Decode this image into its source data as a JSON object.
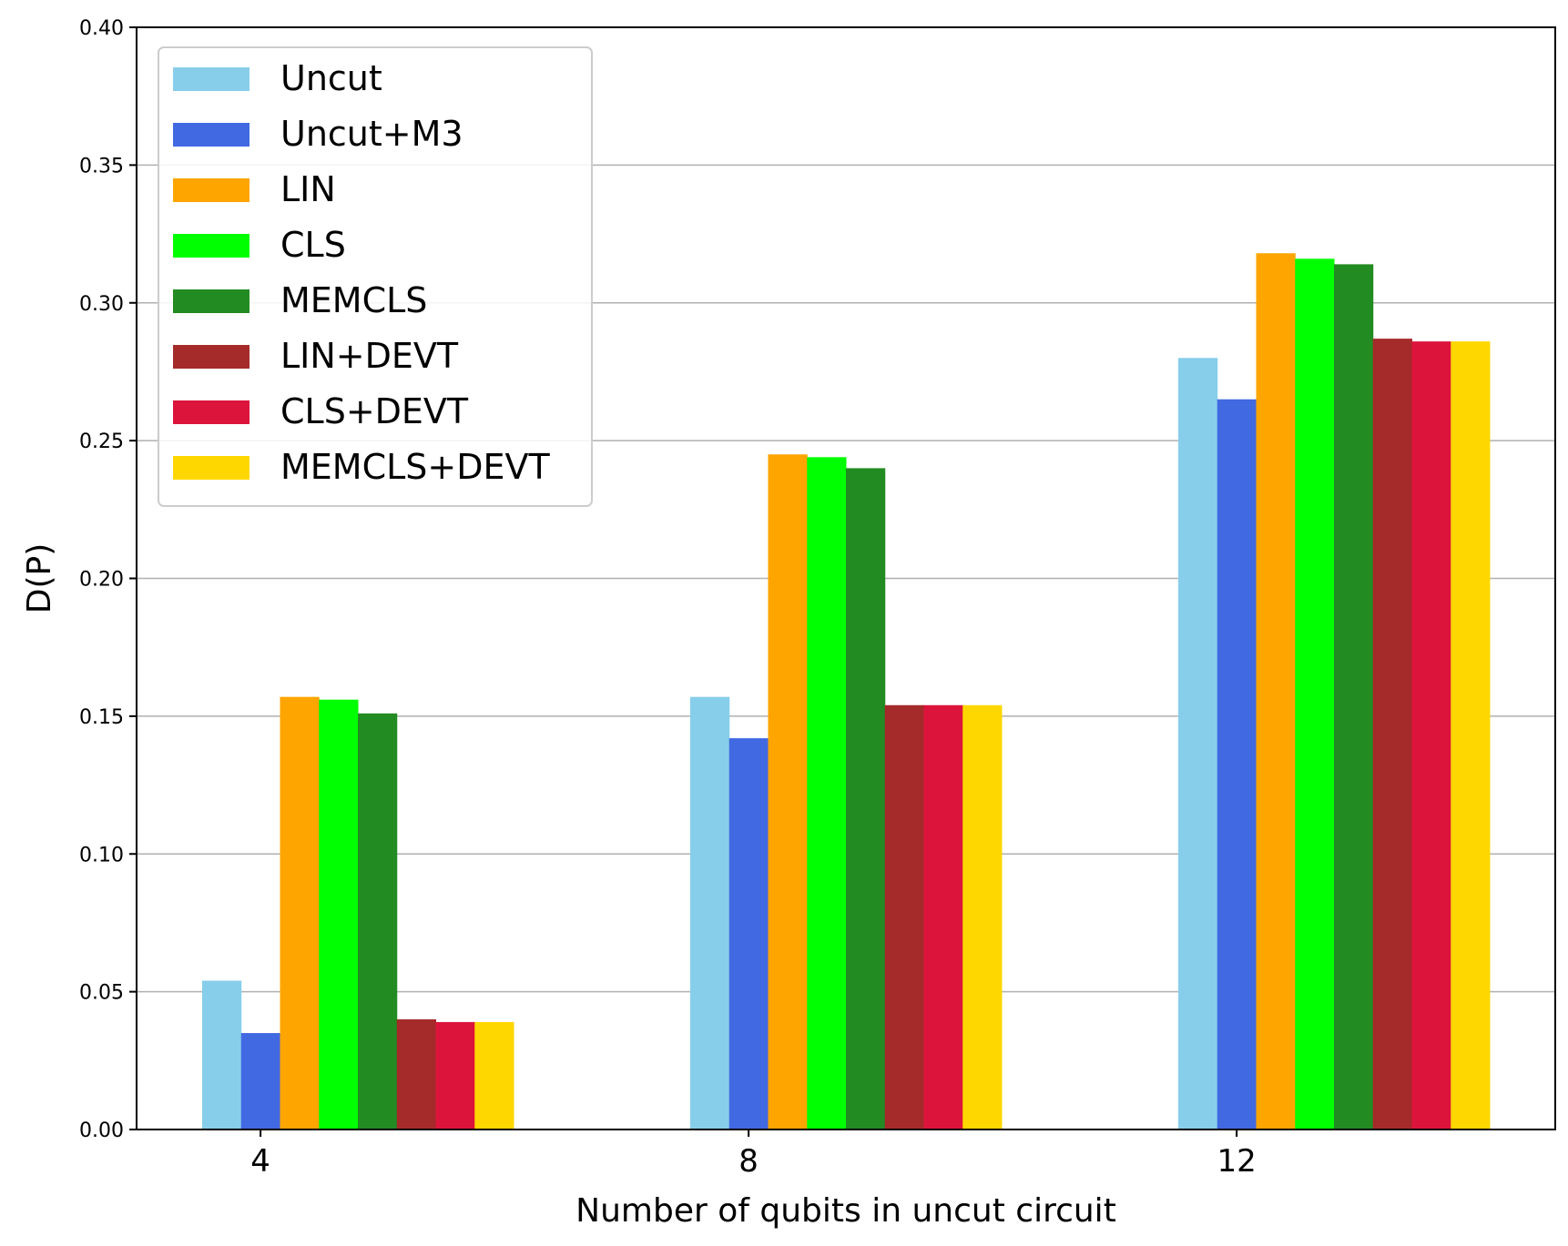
{
  "chart_data": {
    "type": "bar",
    "title": "",
    "xlabel": "Number of qubits in uncut circuit",
    "ylabel": "D(P)",
    "ylim": [
      0,
      0.4
    ],
    "yticks": [
      "0.00",
      "0.05",
      "0.10",
      "0.15",
      "0.20",
      "0.25",
      "0.30",
      "0.35",
      "0.40"
    ],
    "ytick_values": [
      0,
      0.05,
      0.1,
      0.15,
      0.2,
      0.25,
      0.3,
      0.35,
      0.4
    ],
    "categories": [
      "4",
      "8",
      "12"
    ],
    "grid": "horizontal",
    "legend_position": "top-left",
    "series": [
      {
        "name": "Uncut",
        "color": "#87CEEB",
        "values": [
          0.054,
          0.157,
          0.28
        ]
      },
      {
        "name": "Uncut+M3",
        "color": "#4169E1",
        "values": [
          0.035,
          0.142,
          0.265
        ]
      },
      {
        "name": "LIN",
        "color": "#FFA500",
        "values": [
          0.157,
          0.245,
          0.318
        ]
      },
      {
        "name": "CLS",
        "color": "#00FF00",
        "values": [
          0.156,
          0.244,
          0.316
        ]
      },
      {
        "name": "MEMCLS",
        "color": "#228B22",
        "values": [
          0.151,
          0.24,
          0.314
        ]
      },
      {
        "name": "LIN+DEVT",
        "color": "#A52A2A",
        "values": [
          0.04,
          0.154,
          0.287
        ]
      },
      {
        "name": "CLS+DEVT",
        "color": "#DC143C",
        "values": [
          0.039,
          0.154,
          0.286
        ]
      },
      {
        "name": "MEMCLS+DEVT",
        "color": "#FFD700",
        "values": [
          0.039,
          0.154,
          0.286
        ]
      }
    ]
  }
}
